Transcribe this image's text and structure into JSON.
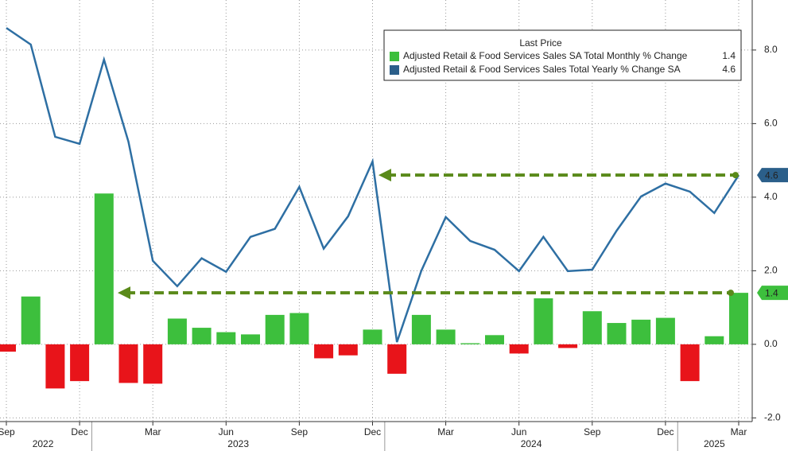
{
  "chart_data": {
    "type": "bar_line",
    "categories": [
      "Sep",
      null,
      null,
      "Dec",
      null,
      null,
      "Mar",
      null,
      null,
      "Jun",
      null,
      null,
      "Sep",
      null,
      null,
      "Dec",
      null,
      null,
      "Mar",
      null,
      null,
      "Jun",
      null,
      null,
      "Sep",
      null,
      null,
      "Dec",
      null,
      null,
      "Mar"
    ],
    "years": [
      "2022",
      "2023",
      "2024",
      "2025"
    ],
    "legend_title": "Last Price",
    "series": [
      {
        "name": "Adjusted Retail & Food Services Sales SA Total Monthly % Change",
        "type": "bar",
        "color": "#3dbf3d",
        "negative_color": "#e8141a",
        "values": [
          -0.2,
          1.3,
          -1.2,
          -1.0,
          4.1,
          -1.05,
          -1.07,
          0.7,
          0.45,
          0.33,
          0.27,
          0.8,
          0.85,
          -0.38,
          -0.3,
          0.4,
          -0.8,
          0.8,
          0.4,
          0.03,
          0.25,
          -0.25,
          1.25,
          -0.1,
          0.9,
          0.58,
          0.67,
          0.72,
          -1.0,
          0.22,
          1.4
        ]
      },
      {
        "name": "Adjusted Retail & Food Services Sales Total Yearly % Change SA",
        "type": "line",
        "color": "#2e6fa3",
        "values": [
          8.6,
          8.15,
          5.64,
          5.45,
          7.74,
          5.51,
          2.27,
          1.58,
          2.34,
          1.97,
          2.92,
          3.14,
          4.28,
          2.6,
          3.48,
          4.97,
          0.06,
          2.0,
          3.46,
          2.81,
          2.57,
          1.99,
          2.92,
          1.99,
          2.03,
          3.09,
          4.02,
          4.37,
          4.15,
          3.57,
          4.6
        ]
      }
    ],
    "ylim": [
      -2.1,
      9.36
    ],
    "yticks": [
      {
        "value": -2,
        "label": "-2.0"
      },
      {
        "value": 0,
        "label": "0.0"
      },
      {
        "value": 2,
        "label": "2.0"
      },
      {
        "value": 4,
        "label": "4.0"
      },
      {
        "value": 6,
        "label": "6.0"
      },
      {
        "value": 8,
        "label": "8.0"
      }
    ],
    "grid": true
  }
}
